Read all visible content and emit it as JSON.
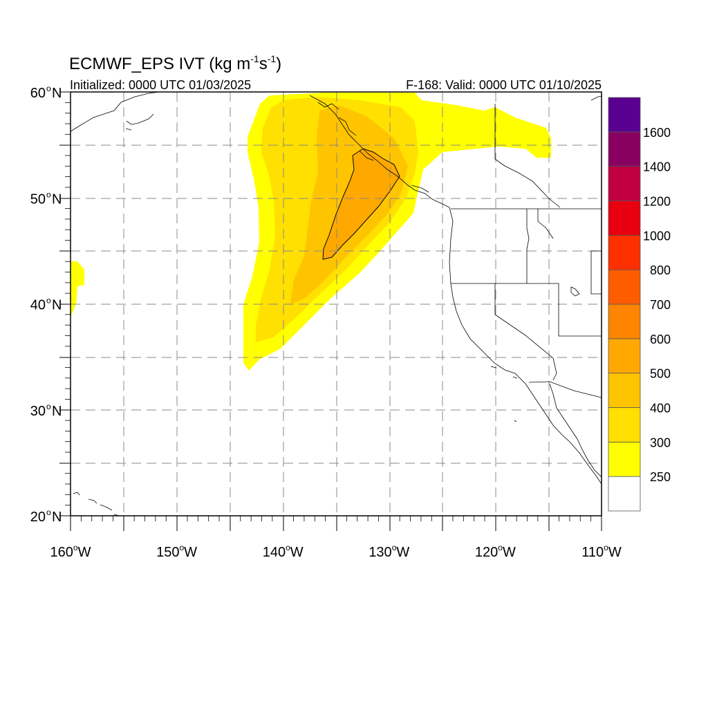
{
  "title": {
    "main": "ECMWF_EPS IVT (kg m",
    "sup1": "-1",
    "mid": "s",
    "sup2": "-1",
    "close": ")"
  },
  "initialized": "Initialized: 0000 UTC 01/03/2025",
  "valid": "F-168: Valid: 0000 UTC 01/10/2025",
  "lat_labels": [
    {
      "deg": "60",
      "unit": "N",
      "lat": 60
    },
    {
      "deg": "50",
      "unit": "N",
      "lat": 50
    },
    {
      "deg": "40",
      "unit": "N",
      "lat": 40
    },
    {
      "deg": "30",
      "unit": "N",
      "lat": 30
    },
    {
      "deg": "20",
      "unit": "N",
      "lat": 20
    }
  ],
  "lon_labels": [
    {
      "deg": "160",
      "unit": "W",
      "lon": -160
    },
    {
      "deg": "150",
      "unit": "W",
      "lon": -150
    },
    {
      "deg": "140",
      "unit": "W",
      "lon": -140
    },
    {
      "deg": "130",
      "unit": "W",
      "lon": -130
    },
    {
      "deg": "120",
      "unit": "W",
      "lon": -120
    },
    {
      "deg": "110",
      "unit": "W",
      "lon": -110
    }
  ],
  "map_extent": {
    "lon": [
      -160,
      -110
    ],
    "lat": [
      20,
      60
    ]
  },
  "colorbar": {
    "levels": [
      "250",
      "300",
      "400",
      "500",
      "600",
      "700",
      "800",
      "1000",
      "1200",
      "1400",
      "1600"
    ],
    "colors": [
      "#ffffff",
      "#ffff00",
      "#ffe000",
      "#ffc400",
      "#ffa800",
      "#ff8400",
      "#ff5c00",
      "#ff3000",
      "#e80010",
      "#c00040",
      "#8a0060",
      "#5a0090"
    ]
  },
  "colors": {
    "ivt_250": "#ffff00",
    "ivt_300": "#ffe000",
    "ivt_400": "#ffc400",
    "ivt_500": "#ffa800",
    "grid": "#888888",
    "coast": "#000000"
  }
}
